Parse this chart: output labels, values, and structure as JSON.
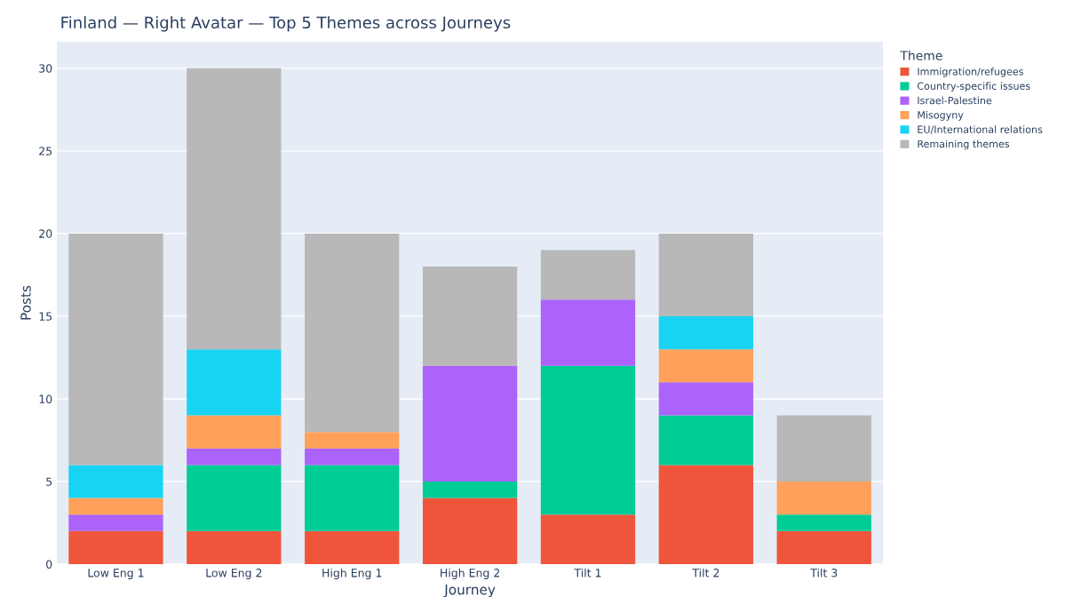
{
  "chart_data": {
    "type": "bar",
    "title": "Finland — Right Avatar — Top 5 Themes across Journeys",
    "xlabel": "Journey",
    "ylabel": "Posts",
    "legend_title": "Theme",
    "categories": [
      "Low Eng 1",
      "Low Eng 2",
      "High Eng 1",
      "High Eng 2",
      "Tilt 1",
      "Tilt 2",
      "Tilt 3"
    ],
    "stacked": true,
    "series": [
      {
        "name": "Immigration/refugees",
        "color": "#ef553b",
        "values": [
          2,
          2,
          2,
          4,
          3,
          6,
          2
        ]
      },
      {
        "name": "Country-specific issues",
        "color": "#00cc96",
        "values": [
          0,
          4,
          4,
          1,
          9,
          3,
          1
        ]
      },
      {
        "name": "Israel-Palestine",
        "color": "#ab63fa",
        "values": [
          1,
          1,
          1,
          7,
          4,
          2,
          0
        ]
      },
      {
        "name": "Misogyny",
        "color": "#ffa15a",
        "values": [
          1,
          2,
          1,
          0,
          0,
          2,
          2
        ]
      },
      {
        "name": "EU/International relations",
        "color": "#19d3f3",
        "values": [
          2,
          4,
          0,
          0,
          0,
          2,
          0
        ]
      },
      {
        "name": "Remaining themes",
        "color": "#b8b8b8",
        "values": [
          14,
          17,
          12,
          6,
          3,
          5,
          4
        ]
      }
    ],
    "ylim": [
      0,
      31.6
    ],
    "yticks": [
      0,
      5,
      10,
      15,
      20,
      25,
      30
    ],
    "grid": "y",
    "legend": "top right"
  }
}
